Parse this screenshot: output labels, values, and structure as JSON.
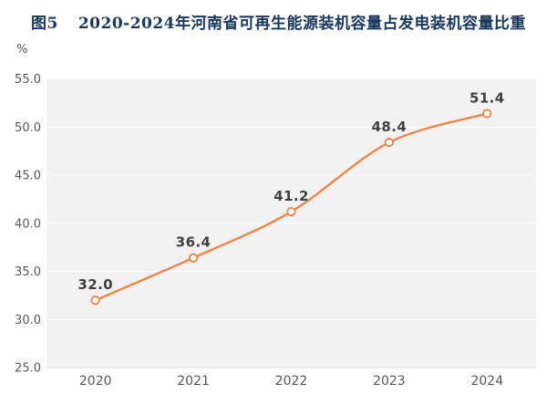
{
  "page": {
    "background": "#FFFFFF"
  },
  "chart_data": {
    "type": "line",
    "title_prefix": "图5",
    "title": "2020-2024年河南省可再生能源装机容量占发电装机容量比重",
    "categories": [
      "2020",
      "2021",
      "2022",
      "2023",
      "2024"
    ],
    "values": [
      32.0,
      36.4,
      41.2,
      48.4,
      51.4
    ],
    "point_labels": [
      "32.0",
      "36.4",
      "41.2",
      "48.4",
      "51.4"
    ],
    "ylabel": "%",
    "ylim": [
      25.0,
      55.0
    ],
    "ytick_interval": 5.0,
    "yticks": [
      "55.0",
      "50.0",
      "45.0",
      "40.0",
      "35.0",
      "30.0",
      "25.0"
    ],
    "grid": true,
    "legend_position": "none",
    "line_smooth": true,
    "colors": {
      "title": "#17375E",
      "line": "#EF8243",
      "marker_fill": "#FFFDFA",
      "marker_stroke": "#EF8243",
      "plot_background": "#F2F2F2",
      "gridline": "#FFFFFF",
      "axis_line": "#D9D9D9",
      "tick_label": "#595959",
      "data_label": "#404040"
    }
  }
}
